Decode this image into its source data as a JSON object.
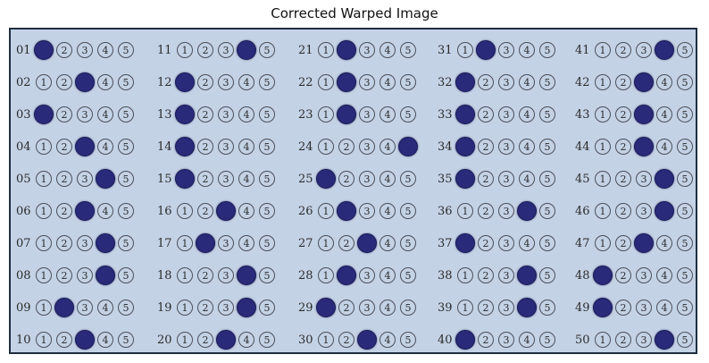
{
  "title": "Corrected Warped Image",
  "choices": [
    "1",
    "2",
    "3",
    "4",
    "5"
  ],
  "colors": {
    "sheet": "#c4d2e6",
    "ink": "#2a2a7a",
    "border": "#1f2d3f"
  },
  "columns": [
    {
      "rows": [
        {
          "num": "01",
          "marked": 1
        },
        {
          "num": "02",
          "marked": 3
        },
        {
          "num": "03",
          "marked": 1
        },
        {
          "num": "04",
          "marked": 3
        },
        {
          "num": "05",
          "marked": 4
        },
        {
          "num": "06",
          "marked": 3
        },
        {
          "num": "07",
          "marked": 4
        },
        {
          "num": "08",
          "marked": 4
        },
        {
          "num": "09",
          "marked": 2
        },
        {
          "num": "10",
          "marked": 3
        }
      ]
    },
    {
      "rows": [
        {
          "num": "11",
          "marked": 4
        },
        {
          "num": "12",
          "marked": 1
        },
        {
          "num": "13",
          "marked": 1
        },
        {
          "num": "14",
          "marked": 1
        },
        {
          "num": "15",
          "marked": 1
        },
        {
          "num": "16",
          "marked": 3
        },
        {
          "num": "17",
          "marked": 2
        },
        {
          "num": "18",
          "marked": 4
        },
        {
          "num": "19",
          "marked": 4
        },
        {
          "num": "20",
          "marked": 3
        }
      ]
    },
    {
      "rows": [
        {
          "num": "21",
          "marked": 2
        },
        {
          "num": "22",
          "marked": 2
        },
        {
          "num": "23",
          "marked": 2
        },
        {
          "num": "24",
          "marked": 5
        },
        {
          "num": "25",
          "marked": 1
        },
        {
          "num": "26",
          "marked": 2
        },
        {
          "num": "27",
          "marked": 3
        },
        {
          "num": "28",
          "marked": 2
        },
        {
          "num": "29",
          "marked": 1
        },
        {
          "num": "30",
          "marked": 3
        }
      ]
    },
    {
      "rows": [
        {
          "num": "31",
          "marked": 2
        },
        {
          "num": "32",
          "marked": 1
        },
        {
          "num": "33",
          "marked": 1
        },
        {
          "num": "34",
          "marked": 1
        },
        {
          "num": "35",
          "marked": 1
        },
        {
          "num": "36",
          "marked": 4
        },
        {
          "num": "37",
          "marked": 1
        },
        {
          "num": "38",
          "marked": 4
        },
        {
          "num": "39",
          "marked": 4
        },
        {
          "num": "40",
          "marked": 1
        }
      ]
    },
    {
      "rows": [
        {
          "num": "41",
          "marked": 4
        },
        {
          "num": "42",
          "marked": 3
        },
        {
          "num": "43",
          "marked": 3
        },
        {
          "num": "44",
          "marked": 3
        },
        {
          "num": "45",
          "marked": 4
        },
        {
          "num": "46",
          "marked": 4
        },
        {
          "num": "47",
          "marked": 3
        },
        {
          "num": "48",
          "marked": 1
        },
        {
          "num": "49",
          "marked": 1
        },
        {
          "num": "50",
          "marked": 4
        }
      ]
    }
  ]
}
